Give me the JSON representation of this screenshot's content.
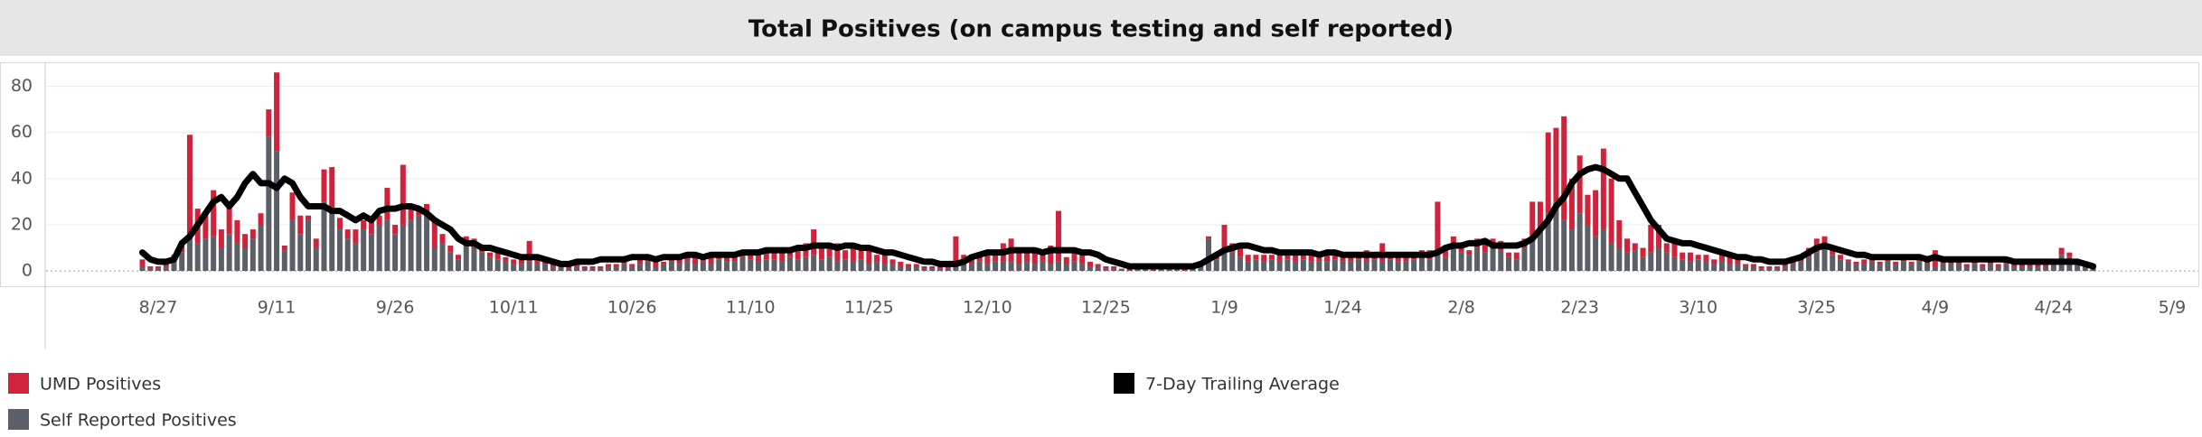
{
  "chart_data": {
    "type": "bar",
    "title": "Total Positives  (on campus testing and self reported)",
    "categories": [
      null,
      null,
      "8/27",
      null,
      null,
      null,
      null,
      null,
      null,
      null,
      null,
      null,
      null,
      null,
      null,
      null,
      null,
      "9/11",
      null,
      null,
      null,
      null,
      null,
      null,
      null,
      null,
      null,
      null,
      null,
      null,
      null,
      null,
      "9/26",
      null,
      null,
      null,
      null,
      null,
      null,
      null,
      null,
      null,
      null,
      null,
      null,
      null,
      null,
      "10/11",
      null,
      null,
      null,
      null,
      null,
      null,
      null,
      null,
      null,
      null,
      null,
      null,
      null,
      null,
      "10/26",
      null,
      null,
      null,
      null,
      null,
      null,
      null,
      null,
      null,
      null,
      null,
      null,
      null,
      null,
      "11/10",
      null,
      null,
      null,
      null,
      null,
      null,
      null,
      null,
      null,
      null,
      null,
      null,
      null,
      null,
      "11/25",
      null,
      null,
      null,
      null,
      null,
      null,
      null,
      null,
      null,
      null,
      null,
      null,
      null,
      null,
      "12/10",
      null,
      null,
      null,
      null,
      null,
      null,
      null,
      null,
      null,
      null,
      null,
      null,
      null,
      null,
      "12/25",
      null,
      null,
      null,
      null,
      null,
      null,
      null,
      null,
      null,
      null,
      null,
      null,
      null,
      null,
      "1/9",
      null,
      null,
      null,
      null,
      null,
      null,
      null,
      null,
      null,
      null,
      null,
      null,
      null,
      null,
      "1/24",
      null,
      null,
      null,
      null,
      null,
      null,
      null,
      null,
      null,
      null,
      null,
      null,
      null,
      null,
      "2/8",
      null,
      null,
      null,
      null,
      null,
      null,
      null,
      null,
      null,
      null,
      null,
      null,
      null,
      null,
      "2/23",
      null,
      null,
      null,
      null,
      null,
      null,
      null,
      null,
      null,
      null,
      null,
      null,
      null,
      null,
      "3/10",
      null,
      null,
      null,
      null,
      null,
      null,
      null,
      null,
      null,
      null,
      null,
      null,
      null,
      null,
      "3/25",
      null,
      null,
      null,
      null,
      null,
      null,
      null,
      null,
      null,
      null,
      null,
      null,
      null,
      null,
      "4/9",
      null,
      null,
      null,
      null,
      null,
      null,
      null,
      null,
      null,
      null,
      null,
      null,
      null,
      null,
      "4/24",
      null,
      null,
      null,
      null,
      null,
      null,
      null,
      null,
      null,
      null,
      null,
      null,
      null,
      null,
      "5/9"
    ],
    "series": [
      {
        "name": "UMD Positives",
        "color": "#d0223a",
        "type": "bar",
        "values": [
          3,
          1,
          1,
          2,
          3,
          5,
          45,
          15,
          10,
          20,
          8,
          12,
          10,
          6,
          4,
          5,
          12,
          34,
          2,
          12,
          8,
          2,
          4,
          14,
          20,
          5,
          4,
          6,
          4,
          6,
          4,
          14,
          4,
          26,
          6,
          4,
          4,
          13,
          4,
          3,
          2,
          3,
          4,
          2,
          2,
          3,
          2,
          2,
          2,
          9,
          3,
          2,
          2,
          1,
          2,
          1,
          1,
          1,
          1,
          1,
          1,
          2,
          1,
          3,
          2,
          2,
          1,
          3,
          2,
          2,
          4,
          2,
          3,
          3,
          2,
          4,
          2,
          4,
          3,
          3,
          4,
          5,
          3,
          5,
          6,
          11,
          5,
          6,
          8,
          4,
          6,
          4,
          6,
          3,
          4,
          2,
          2,
          1,
          1,
          1,
          1,
          1,
          1,
          13,
          4,
          4,
          3,
          4,
          5,
          8,
          10,
          5,
          6,
          5,
          3,
          8,
          22,
          3,
          4,
          4,
          2,
          1,
          1,
          1,
          0,
          1,
          0,
          1,
          1,
          0,
          0,
          1,
          1,
          1,
          1,
          1,
          2,
          10,
          4,
          6,
          3,
          2,
          3,
          2,
          3,
          2,
          3,
          2,
          3,
          2,
          3,
          2,
          4,
          3,
          2,
          5,
          3,
          8,
          2,
          3,
          3,
          2,
          3,
          4,
          22,
          4,
          5,
          3,
          2,
          4,
          6,
          2,
          4,
          2,
          3,
          4,
          15,
          12,
          35,
          32,
          45,
          22,
          25,
          13,
          20,
          35,
          28,
          12,
          6,
          3,
          4,
          12,
          10,
          4,
          6,
          3,
          4,
          2,
          3,
          2,
          3,
          3,
          2,
          1,
          1,
          1,
          1,
          1,
          1,
          1,
          2,
          4,
          6,
          5,
          3,
          2,
          1,
          1,
          2,
          2,
          1,
          2,
          1,
          2,
          1,
          2,
          1,
          7,
          1,
          2,
          2,
          1,
          2,
          1,
          2,
          1,
          2,
          1,
          1,
          1,
          1,
          1,
          1,
          3,
          2,
          1,
          1,
          1,
          null,
          null,
          null,
          null,
          null,
          null,
          null,
          null,
          null,
          null
        ]
      },
      {
        "name": "Self Reported Positives",
        "color": "#5b5f68",
        "type": "bar",
        "values": [
          2,
          1,
          1,
          2,
          4,
          8,
          14,
          12,
          14,
          15,
          10,
          16,
          12,
          10,
          14,
          20,
          58,
          52,
          9,
          22,
          16,
          22,
          10,
          30,
          25,
          18,
          14,
          12,
          18,
          16,
          20,
          22,
          16,
          20,
          22,
          24,
          25,
          10,
          12,
          8,
          5,
          12,
          10,
          8,
          6,
          5,
          4,
          3,
          3,
          4,
          3,
          3,
          2,
          2,
          1,
          2,
          1,
          1,
          1,
          2,
          2,
          3,
          2,
          3,
          4,
          2,
          3,
          4,
          3,
          4,
          3,
          4,
          3,
          5,
          4,
          4,
          6,
          5,
          4,
          5,
          5,
          4,
          6,
          5,
          6,
          7,
          5,
          6,
          4,
          5,
          4,
          5,
          3,
          4,
          3,
          3,
          2,
          2,
          2,
          1,
          1,
          1,
          1,
          2,
          3,
          3,
          4,
          3,
          4,
          4,
          4,
          3,
          4,
          3,
          4,
          3,
          4,
          3,
          4,
          3,
          2,
          2,
          1,
          1,
          1,
          0,
          1,
          1,
          0,
          1,
          1,
          1,
          0,
          1,
          2,
          14,
          5,
          10,
          8,
          6,
          4,
          5,
          4,
          5,
          4,
          5,
          4,
          5,
          4,
          4,
          4,
          5,
          4,
          4,
          5,
          4,
          5,
          4,
          5,
          4,
          4,
          5,
          6,
          5,
          8,
          6,
          10,
          8,
          7,
          10,
          8,
          12,
          9,
          6,
          5,
          10,
          15,
          18,
          25,
          30,
          22,
          18,
          25,
          20,
          15,
          18,
          12,
          10,
          8,
          9,
          6,
          8,
          10,
          8,
          6,
          5,
          4,
          5,
          4,
          3,
          4,
          3,
          3,
          2,
          2,
          1,
          1,
          1,
          2,
          3,
          4,
          6,
          8,
          10,
          7,
          5,
          4,
          3,
          3,
          4,
          3,
          4,
          3,
          4,
          3,
          4,
          3,
          2,
          3,
          3,
          3,
          2,
          3,
          2,
          3,
          2,
          3,
          2,
          2,
          2,
          2,
          2,
          3,
          7,
          6,
          3,
          2,
          1,
          null,
          null,
          null,
          null,
          null,
          null,
          null,
          null,
          null,
          null
        ]
      },
      {
        "name": "7-Day Trailing Average",
        "color": "#000000",
        "type": "line",
        "values": [
          8,
          5,
          4,
          4,
          5,
          12,
          15,
          20,
          25,
          30,
          32,
          28,
          32,
          38,
          42,
          38,
          38,
          36,
          40,
          38,
          32,
          28,
          28,
          28,
          26,
          26,
          24,
          22,
          24,
          22,
          26,
          27,
          27,
          28,
          28,
          27,
          25,
          22,
          20,
          18,
          14,
          12,
          12,
          10,
          10,
          9,
          8,
          7,
          6,
          6,
          6,
          5,
          4,
          3,
          3,
          4,
          4,
          4,
          5,
          5,
          5,
          5,
          6,
          6,
          6,
          5,
          6,
          6,
          6,
          7,
          7,
          6,
          7,
          7,
          7,
          7,
          8,
          8,
          8,
          9,
          9,
          9,
          9,
          10,
          10,
          11,
          11,
          11,
          10,
          11,
          11,
          10,
          10,
          9,
          8,
          8,
          7,
          6,
          5,
          4,
          4,
          3,
          3,
          3,
          4,
          6,
          7,
          8,
          8,
          8,
          9,
          9,
          9,
          9,
          8,
          9,
          9,
          9,
          9,
          8,
          8,
          7,
          5,
          4,
          3,
          2,
          2,
          2,
          2,
          2,
          2,
          2,
          2,
          2,
          3,
          5,
          7,
          9,
          10,
          11,
          11,
          10,
          9,
          9,
          8,
          8,
          8,
          8,
          8,
          7,
          8,
          8,
          7,
          7,
          7,
          7,
          7,
          7,
          7,
          7,
          7,
          7,
          7,
          7,
          8,
          10,
          11,
          11,
          12,
          12,
          13,
          11,
          11,
          11,
          11,
          12,
          14,
          18,
          22,
          28,
          32,
          38,
          42,
          44,
          45,
          44,
          42,
          40,
          40,
          34,
          28,
          22,
          18,
          14,
          13,
          12,
          12,
          11,
          10,
          9,
          8,
          7,
          6,
          6,
          5,
          5,
          4,
          4,
          4,
          5,
          6,
          8,
          10,
          11,
          10,
          9,
          8,
          7,
          7,
          6,
          6,
          6,
          6,
          6,
          6,
          6,
          5,
          6,
          5,
          5,
          5,
          5,
          5,
          5,
          5,
          5,
          5,
          4,
          4,
          4,
          4,
          4,
          4,
          4,
          4,
          4,
          3,
          2,
          null,
          null,
          null,
          null,
          null,
          null,
          null,
          null,
          null,
          null
        ]
      }
    ],
    "ylim": [
      -7,
      90
    ],
    "yticks": [
      0,
      20,
      40,
      60,
      80
    ],
    "grid": true
  }
}
